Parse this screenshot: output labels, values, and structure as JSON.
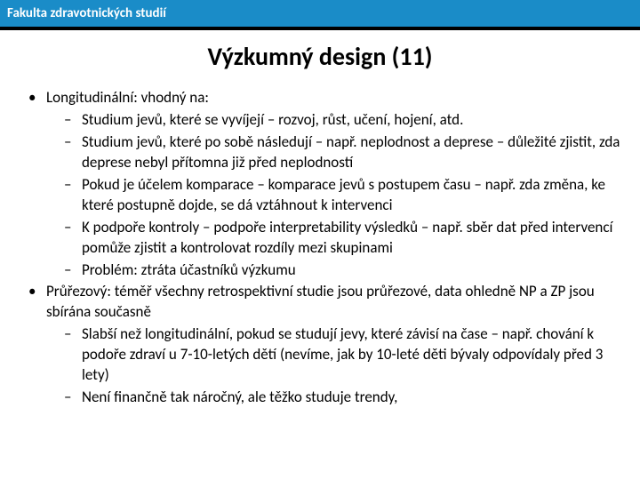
{
  "header": {
    "text": "Fakulta zdravotnických studií",
    "bg_color": "#1a8cc8",
    "text_color": "#ffffff"
  },
  "title": "Výzkumný design (11)",
  "bullets": [
    {
      "text": "Longitudinální: vhodný na:",
      "children": [
        "Studium  jevů, které se vyvíjejí – rozvoj, růst, učení, hojení, atd.",
        "Studium jevů, které po sobě následují – např. neplodnost a deprese – důležité zjistit, zda deprese nebyl přítomna již před neplodností",
        "Pokud je účelem komparace – komparace jevů s postupem času – např. zda změna, ke které postupně dojde, se dá vztáhnout k intervenci",
        "K podpoře kontroly – podpoře interpretability výsledků – např. sběr dat před intervencí pomůže zjistit a kontrolovat rozdíly mezi skupinami",
        "Problém: ztráta účastníků výzkumu"
      ]
    },
    {
      "text": "Průřezový: téměř všechny retrospektivní studie jsou průřezové, data ohledně NP a ZP jsou sbírána současně",
      "children": [
        "Slabší než longitudinální, pokud se studují jevy, které závisí na čase – např. chování k podoře zdraví u 7-10-letých dětí (nevíme, jak by 10-leté děti bývaly odpovídaly před 3 lety)",
        "Není finančně tak náročný, ale těžko studuje trendy,"
      ]
    }
  ],
  "colors": {
    "background": "#ffffff",
    "text": "#000000",
    "strip": "#000000"
  },
  "fonts": {
    "title_size": 28,
    "body_size": 17,
    "header_size": 15
  }
}
